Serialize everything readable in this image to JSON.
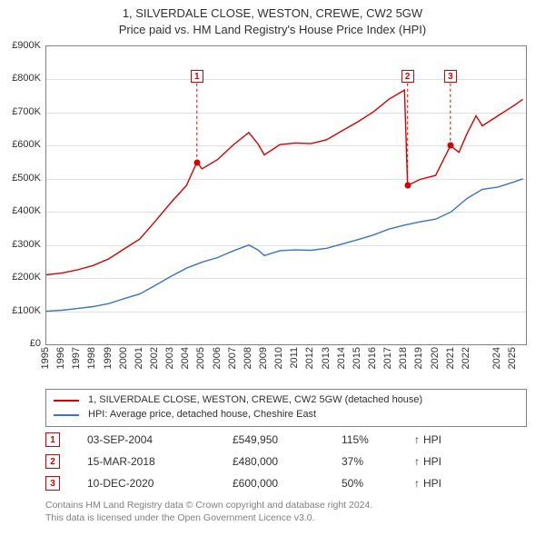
{
  "title": {
    "line1": "1, SILVERDALE CLOSE, WESTON, CREWE, CW2 5GW",
    "line2": "Price paid vs. HM Land Registry's House Price Index (HPI)",
    "fontsize": 13
  },
  "chart": {
    "type": "line",
    "background_color": "#ffffff",
    "grid_color": "#e0e0e0",
    "axis_color": "#808080",
    "x": {
      "min": 1995,
      "max": 2025.8,
      "ticks": [
        1995,
        1996,
        1997,
        1998,
        1999,
        2000,
        2001,
        2002,
        2003,
        2004,
        2005,
        2006,
        2007,
        2008,
        2009,
        2010,
        2011,
        2012,
        2013,
        2014,
        2015,
        2016,
        2017,
        2018,
        2019,
        2020,
        2021,
        2022,
        2024,
        2025
      ],
      "label_fontsize": 11,
      "label_rotation_deg": -90
    },
    "y": {
      "min": 0,
      "max": 900000,
      "ticks": [
        0,
        100000,
        200000,
        300000,
        400000,
        500000,
        600000,
        700000,
        800000,
        900000
      ],
      "tick_labels": [
        "£0",
        "£100K",
        "£200K",
        "£300K",
        "£400K",
        "£500K",
        "£600K",
        "£700K",
        "£800K",
        "£900K"
      ],
      "label_fontsize": 11
    },
    "series": [
      {
        "id": "hpi",
        "label": "HPI: Average price, detached house, Cheshire East",
        "color": "#3a74c4",
        "line_width": 1.4,
        "points": [
          [
            1995.0,
            100000
          ],
          [
            1996.0,
            103000
          ],
          [
            1997.0,
            108000
          ],
          [
            1998.0,
            114000
          ],
          [
            1999.0,
            123000
          ],
          [
            2000.0,
            138000
          ],
          [
            2001.0,
            152000
          ],
          [
            2002.0,
            178000
          ],
          [
            2003.0,
            205000
          ],
          [
            2004.0,
            230000
          ],
          [
            2005.0,
            248000
          ],
          [
            2006.0,
            262000
          ],
          [
            2007.0,
            282000
          ],
          [
            2008.0,
            300000
          ],
          [
            2008.6,
            285000
          ],
          [
            2009.0,
            268000
          ],
          [
            2010.0,
            283000
          ],
          [
            2011.0,
            285000
          ],
          [
            2012.0,
            284000
          ],
          [
            2013.0,
            290000
          ],
          [
            2014.0,
            303000
          ],
          [
            2015.0,
            316000
          ],
          [
            2016.0,
            330000
          ],
          [
            2017.0,
            348000
          ],
          [
            2018.0,
            360000
          ],
          [
            2019.0,
            370000
          ],
          [
            2020.0,
            378000
          ],
          [
            2021.0,
            400000
          ],
          [
            2022.0,
            440000
          ],
          [
            2023.0,
            468000
          ],
          [
            2024.0,
            475000
          ],
          [
            2025.0,
            490000
          ],
          [
            2025.6,
            500000
          ]
        ]
      },
      {
        "id": "property",
        "label": "1, SILVERDALE CLOSE, WESTON, CREWE, CW2 5GW (detached house)",
        "color": "#d80000",
        "line_width": 1.4,
        "points": [
          [
            1995.0,
            210000
          ],
          [
            1996.0,
            215000
          ],
          [
            1997.0,
            225000
          ],
          [
            1998.0,
            238000
          ],
          [
            1999.0,
            258000
          ],
          [
            2000.0,
            288000
          ],
          [
            2001.0,
            318000
          ],
          [
            2002.0,
            372000
          ],
          [
            2003.0,
            428000
          ],
          [
            2004.0,
            480000
          ],
          [
            2004.67,
            549950
          ],
          [
            2005.0,
            530000
          ],
          [
            2006.0,
            558000
          ],
          [
            2007.0,
            602000
          ],
          [
            2008.0,
            640000
          ],
          [
            2008.6,
            605000
          ],
          [
            2009.0,
            572000
          ],
          [
            2010.0,
            603000
          ],
          [
            2011.0,
            608000
          ],
          [
            2012.0,
            606000
          ],
          [
            2013.0,
            618000
          ],
          [
            2014.0,
            645000
          ],
          [
            2015.0,
            672000
          ],
          [
            2016.0,
            702000
          ],
          [
            2017.0,
            740000
          ],
          [
            2018.0,
            768000
          ],
          [
            2018.2,
            480000
          ],
          [
            2019.0,
            498000
          ],
          [
            2020.0,
            510000
          ],
          [
            2020.95,
            600000
          ],
          [
            2021.5,
            580000
          ],
          [
            2022.0,
            635000
          ],
          [
            2022.6,
            690000
          ],
          [
            2023.0,
            660000
          ],
          [
            2024.0,
            690000
          ],
          [
            2025.0,
            720000
          ],
          [
            2025.6,
            740000
          ]
        ]
      }
    ],
    "sale_markers": [
      {
        "n": "1",
        "x": 2004.67,
        "y": 549950,
        "badge_y": 810000
      },
      {
        "n": "2",
        "x": 2018.2,
        "y": 480000,
        "badge_y": 810000
      },
      {
        "n": "3",
        "x": 2020.95,
        "y": 600000,
        "badge_y": 810000
      }
    ]
  },
  "legend": {
    "items": [
      {
        "color": "#d80000",
        "label": "1, SILVERDALE CLOSE, WESTON, CREWE, CW2 5GW (detached house)"
      },
      {
        "color": "#3a74c4",
        "label": "HPI: Average price, detached house, Cheshire East"
      }
    ]
  },
  "sales": [
    {
      "n": "1",
      "date": "03-SEP-2004",
      "price": "£549,950",
      "pct": "115%",
      "arrow": "↑",
      "suffix": "HPI"
    },
    {
      "n": "2",
      "date": "15-MAR-2018",
      "price": "£480,000",
      "pct": "37%",
      "arrow": "↑",
      "suffix": "HPI"
    },
    {
      "n": "3",
      "date": "10-DEC-2020",
      "price": "£600,000",
      "pct": "50%",
      "arrow": "↑",
      "suffix": "HPI"
    }
  ],
  "footer": {
    "line1": "Contains HM Land Registry data © Crown copyright and database right 2024.",
    "line2": "This data is licensed under the Open Government Licence v3.0."
  }
}
